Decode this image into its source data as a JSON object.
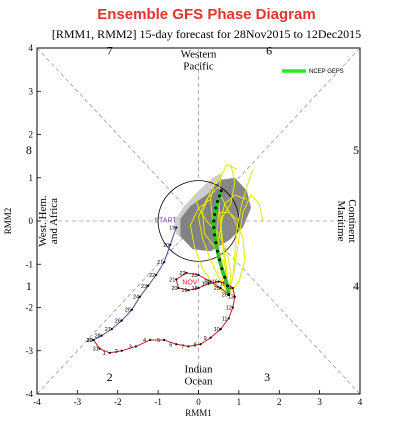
{
  "title": "Ensemble GFS Phase Diagram",
  "subtitle": "[RMM1, RMM2] 15-day forecast for 28Nov2015 to 12Dec2015",
  "chart_data": {
    "type": "line",
    "xlabel": "RMM1",
    "ylabel": "RMM2",
    "xlim": [
      -4,
      4
    ],
    "ylim": [
      -4,
      4
    ],
    "xticks": [
      "-4",
      "-3",
      "-2",
      "-1",
      "0",
      "1",
      "2",
      "3",
      "4"
    ],
    "yticks": [
      "-4",
      "-3",
      "-2",
      "-1",
      "0",
      "1",
      "2",
      "3",
      "4"
    ],
    "grid": false,
    "legend": {
      "position": "top-right",
      "entries": [
        "NCEP GEFS"
      ]
    },
    "colors": {
      "nov": "#6a3d9a",
      "oct": "#c81e1e",
      "ensemble_mean": "#22cc22",
      "members": "#e6e600",
      "spread_dark": "#7a7a7a",
      "spread_light": "#c8c8c8"
    },
    "phase_numbers": [
      {
        "text": "1",
        "x": -4.2,
        "y": -1.6
      },
      {
        "text": "2",
        "x": -2.2,
        "y": -3.7
      },
      {
        "text": "3",
        "x": 1.7,
        "y": -3.7
      },
      {
        "text": "4",
        "x": 3.9,
        "y": -1.6
      },
      {
        "text": "5",
        "x": 3.9,
        "y": 1.55
      },
      {
        "text": "6",
        "x": 1.75,
        "y": 3.85
      },
      {
        "text": "7",
        "x": -2.2,
        "y": 3.85
      },
      {
        "text": "8",
        "x": -4.2,
        "y": 1.55
      }
    ],
    "regions": {
      "top": [
        "Western",
        "Pacific"
      ],
      "bottom": [
        "Indian",
        "Ocean"
      ],
      "left": [
        "West. Hem.",
        "and Africa"
      ],
      "right": [
        "Maritime",
        "Continent"
      ]
    },
    "labels": {
      "start": "START",
      "nov": "NOV"
    },
    "series": [
      {
        "name": "",
        "color": "#6a3d9a",
        "x": [
          -0.55,
          -0.7,
          -0.85,
          -1.05,
          -1.25,
          -1.45,
          -1.65,
          -1.9,
          -2.15,
          -2.4,
          -2.6
        ],
        "y": [
          -0.15,
          -0.55,
          -0.95,
          -1.25,
          -1.5,
          -1.75,
          -2.05,
          -2.3,
          -2.5,
          -2.65,
          -2.75
        ],
        "day_labels": [
          "19",
          "20",
          "21",
          "22",
          "23",
          "24",
          "25",
          "26",
          "27",
          "28",
          "29"
        ]
      },
      {
        "name": "",
        "color": "#c81e1e",
        "x": [
          -2.6,
          -2.45,
          -2.2,
          -1.9,
          -1.55,
          -1.2,
          -0.85,
          -0.55,
          -0.25,
          0.05,
          0.3,
          0.55,
          0.75,
          0.85,
          0.9,
          0.85,
          0.7,
          0.5,
          0.25,
          0.0,
          -0.25,
          -0.5,
          -0.55,
          -0.3,
          0.0,
          0.3,
          0.55,
          0.75
        ],
        "y": [
          -2.75,
          -2.95,
          -3.05,
          -3.0,
          -2.9,
          -2.75,
          -2.75,
          -2.85,
          -2.9,
          -2.85,
          -2.7,
          -2.5,
          -2.25,
          -2.0,
          -1.75,
          -1.55,
          -1.45,
          -1.4,
          -1.45,
          -1.55,
          -1.6,
          -1.55,
          -1.35,
          -1.2,
          -1.25,
          -1.4,
          -1.55,
          -1.7
        ],
        "day_labels": [
          "30",
          "31",
          "1",
          "2",
          "3",
          "4",
          "5",
          "6",
          "7",
          "8",
          "9",
          "10",
          "11",
          "12",
          "13",
          "14",
          "15",
          "16",
          "17",
          "18",
          "19",
          "20",
          "21",
          "22",
          "23",
          "24",
          "25",
          "26"
        ]
      },
      {
        "name": "NCEP GEFS",
        "color": "#22cc22",
        "x": [
          0.75,
          0.72,
          0.65,
          0.58,
          0.52,
          0.47,
          0.43,
          0.4,
          0.38,
          0.38,
          0.4,
          0.43,
          0.47,
          0.52,
          0.56
        ],
        "y": [
          -1.7,
          -1.5,
          -1.3,
          -1.1,
          -0.9,
          -0.7,
          -0.5,
          -0.32,
          -0.15,
          0.0,
          0.15,
          0.3,
          0.45,
          0.58,
          0.7
        ]
      }
    ],
    "ensemble_members": [
      {
        "x": [
          0.75,
          0.6,
          0.45,
          0.35,
          0.3,
          0.4,
          0.6
        ],
        "y": [
          -1.7,
          -1.2,
          -0.6,
          0.0,
          0.5,
          0.9,
          1.1
        ]
      },
      {
        "x": [
          0.75,
          0.7,
          0.6,
          0.55,
          0.65,
          0.9,
          1.2
        ],
        "y": [
          -1.7,
          -1.1,
          -0.5,
          0.0,
          0.4,
          0.6,
          0.5
        ]
      },
      {
        "x": [
          0.75,
          0.8,
          0.7,
          0.5,
          0.2,
          0.0,
          -0.1
        ],
        "y": [
          -1.7,
          -1.2,
          -0.7,
          -0.3,
          0.0,
          0.3,
          0.6
        ]
      },
      {
        "x": [
          0.75,
          0.9,
          1.0,
          1.1,
          1.3,
          1.5,
          1.6
        ],
        "y": [
          -1.7,
          -1.1,
          -0.4,
          0.2,
          0.6,
          0.4,
          0.0
        ]
      },
      {
        "x": [
          0.75,
          0.5,
          0.3,
          0.1,
          0.0,
          0.2,
          0.5
        ],
        "y": [
          -1.7,
          -1.3,
          -0.9,
          -0.4,
          0.1,
          0.5,
          0.8
        ]
      },
      {
        "x": [
          0.75,
          0.65,
          0.55,
          0.5,
          0.55,
          0.7,
          0.95
        ],
        "y": [
          -1.7,
          -1.0,
          -0.2,
          0.5,
          1.0,
          1.3,
          1.2
        ]
      },
      {
        "x": [
          0.75,
          0.85,
          0.9,
          0.95,
          1.05,
          1.2,
          1.35
        ],
        "y": [
          -1.7,
          -1.3,
          -0.8,
          -0.2,
          0.3,
          0.8,
          1.2
        ]
      },
      {
        "x": [
          0.75,
          0.4,
          0.1,
          -0.1,
          -0.2,
          0.0,
          0.3
        ],
        "y": [
          -1.7,
          -1.5,
          -1.1,
          -0.6,
          -0.1,
          0.3,
          0.5
        ]
      },
      {
        "x": [
          0.75,
          0.6,
          0.5,
          0.45,
          0.5,
          0.75,
          1.0
        ],
        "y": [
          -1.7,
          -1.4,
          -0.9,
          -0.3,
          0.2,
          0.2,
          0.0
        ]
      },
      {
        "x": [
          0.75,
          1.0,
          1.15,
          1.1,
          0.9,
          0.7,
          0.55
        ],
        "y": [
          -1.7,
          -1.4,
          -0.9,
          -0.4,
          0.0,
          0.3,
          0.6
        ]
      },
      {
        "x": [
          0.75,
          0.7,
          0.65,
          0.4,
          0.15,
          0.1,
          0.3
        ],
        "y": [
          -1.7,
          -1.5,
          -1.0,
          -0.6,
          -0.3,
          0.2,
          0.7
        ]
      },
      {
        "x": [
          0.75,
          0.55,
          0.5,
          0.6,
          0.8,
          0.9,
          0.8
        ],
        "y": [
          -1.7,
          -1.0,
          -0.4,
          0.1,
          0.4,
          0.9,
          1.3
        ]
      }
    ],
    "spread_light": {
      "x": [
        0.55,
        0.35,
        0.0,
        -0.35,
        -0.6,
        -0.55,
        -0.2,
        0.1,
        0.35,
        0.55,
        0.65
      ],
      "y": [
        1.1,
        1.0,
        0.7,
        0.35,
        0.0,
        -0.3,
        -0.55,
        -0.7,
        -0.35,
        0.1,
        0.55
      ]
    },
    "spread_dark": {
      "x": [
        1.2,
        0.9,
        0.55,
        0.2,
        -0.2,
        -0.45,
        -0.45,
        -0.15,
        0.3,
        0.75,
        1.1,
        1.3
      ],
      "y": [
        0.7,
        1.0,
        0.95,
        0.6,
        0.35,
        0.05,
        -0.35,
        -0.65,
        -0.7,
        -0.45,
        -0.15,
        0.3
      ]
    }
  }
}
